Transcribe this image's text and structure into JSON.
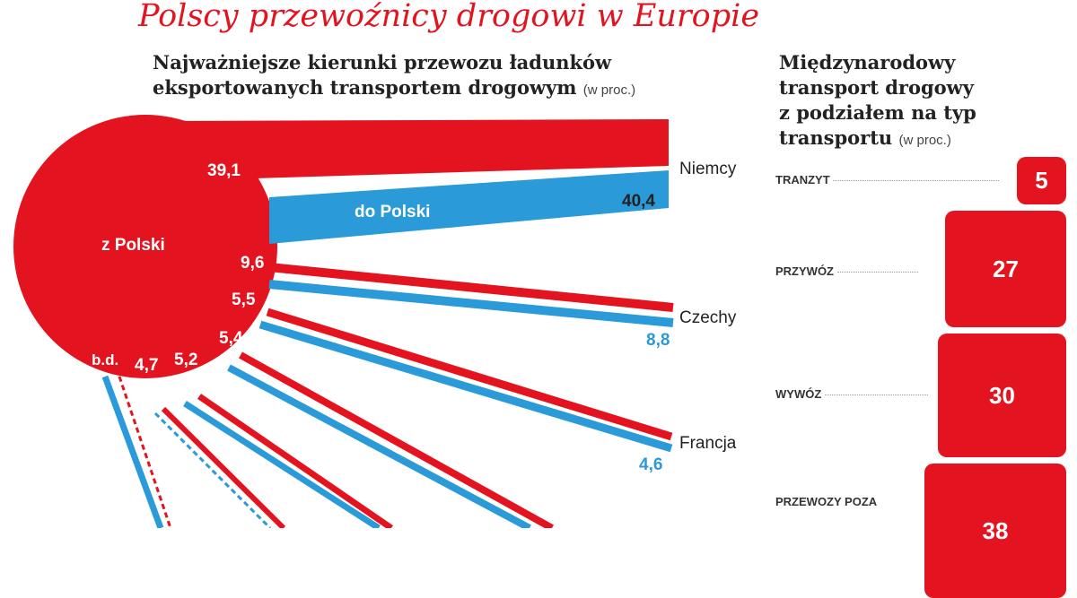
{
  "title": "Polscy przewoźnicy drogowi w Europie",
  "colors": {
    "from_poland": "#e3141f",
    "to_poland": "#2a9ad8"
  },
  "chart_data": [
    {
      "type": "flow",
      "title_line1": "Najważniejsze kierunki przewozu ładunków",
      "title_line2": "eksportowanych transportem drogowym",
      "unit": "(w proc.)",
      "series": [
        {
          "name": "z Polski"
        },
        {
          "name": "do Polski"
        }
      ],
      "countries": [
        {
          "name": "Niemcy",
          "from": "39,1",
          "to": "40,4"
        },
        {
          "name": "Czechy",
          "from": "9,6",
          "to": "8,8"
        },
        {
          "name": "Francja",
          "from": "5,5",
          "to": "4,6"
        }
      ],
      "other_from_values": [
        "5,4",
        "5,2",
        "4,7",
        "b.d."
      ]
    },
    {
      "type": "bar",
      "title_lines": [
        "Międzynarodowy",
        "transport drogowy",
        "z podziałem na typ",
        "transportu"
      ],
      "unit": "(w proc.)",
      "categories": [
        "TRANZYT",
        "PRZYWÓZ",
        "WYWÓZ",
        "PRZEWOZY POZA"
      ],
      "values": [
        5,
        27,
        30,
        38
      ],
      "value_labels": [
        "5",
        "27",
        "30",
        "38"
      ]
    }
  ]
}
